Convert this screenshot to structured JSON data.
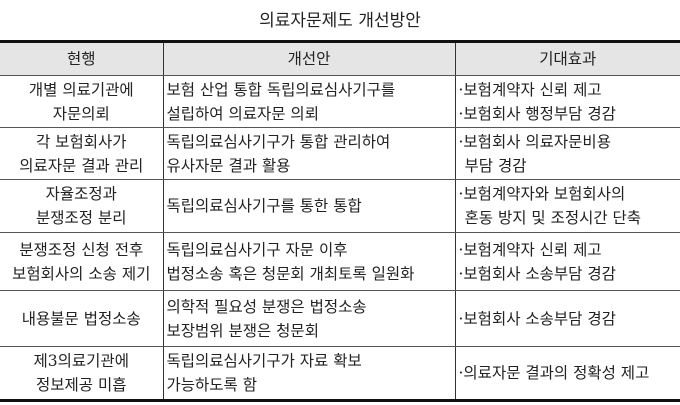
{
  "title": "의료자문제도  개선방안",
  "headers": [
    "현행",
    "개선안",
    "기대효과"
  ],
  "rows": [
    {
      "current": [
        "개별 의료기관에",
        "자문의뢰"
      ],
      "proposal": [
        "보험 산업 통합 독립의료심사기구를",
        "설립하여 의료자문 의뢰"
      ],
      "effect": [
        "·보험계약자 신뢰 제고",
        "·보험회사 행정부담 경감"
      ]
    },
    {
      "current": [
        "각 보험회사가",
        "의료자문 결과 관리"
      ],
      "proposal": [
        "독립의료심사기구가 통합 관리하여",
        "유사자문 결과 활용"
      ],
      "effect": [
        "·보험회사 의료자문비용",
        " 부담 경감"
      ]
    },
    {
      "current": [
        "자율조정과",
        "분쟁조정 분리"
      ],
      "proposal": [
        "독립의료심사기구를 통한 통합"
      ],
      "effect": [
        "·보험계약자와 보험회사의",
        " 혼동 방지 및 조정시간 단축"
      ]
    },
    {
      "current": [
        "분쟁조정 신청 전후",
        "보험회사의 소송 제기"
      ],
      "proposal": [
        "독립의료심사기구 자문 이후",
        "법정소송 혹은 청문회 개최토록 일원화"
      ],
      "effect": [
        "·보험계약자 신뢰 제고",
        "·보험회사 소송부담 경감"
      ]
    },
    {
      "current": [
        "내용불문 법정소송"
      ],
      "proposal": [
        "의학적 필요성 분쟁은 법정소송",
        "보장범위 분쟁은 청문회"
      ],
      "effect": [
        "·보험회사 소송부담 경감"
      ]
    },
    {
      "current": [
        "제3의료기관에",
        "정보제공 미흡"
      ],
      "proposal": [
        "독립의료심사기구가 자료 확보",
        "가능하도록 함"
      ],
      "effect": [
        "·의료자문 결과의 정확성 제고"
      ]
    }
  ]
}
